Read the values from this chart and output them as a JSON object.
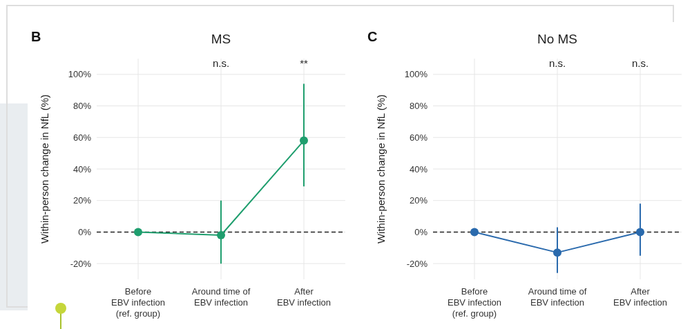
{
  "chart_data": [
    {
      "type": "line",
      "title": "MS",
      "ylabel": "Within-person change in NfL (%)",
      "categories": [
        "Before\nEBV infection\n(ref. group)",
        "Around time of\nEBV infection",
        "After\nEBV infection"
      ],
      "series": [
        {
          "color": "#1f9e6e",
          "values": [
            0,
            -2,
            58
          ],
          "errors": [
            null,
            [
              -20,
              20
            ],
            [
              29,
              94
            ]
          ]
        }
      ],
      "ylim": [
        -30,
        110
      ],
      "yticks": [
        {
          "value": -20,
          "label": "-20%"
        },
        {
          "value": 0,
          "label": "0%"
        },
        {
          "value": 20,
          "label": "20%"
        },
        {
          "value": 40,
          "label": "40%"
        },
        {
          "value": 60,
          "label": "60%"
        },
        {
          "value": 80,
          "label": "80%"
        },
        {
          "value": 100,
          "label": "100%"
        }
      ],
      "grid": true,
      "marker": "circle",
      "ref_lines": [
        {
          "axis": "y",
          "value": 0,
          "line_style": "dashed",
          "color": "#222222"
        }
      ],
      "annotations": [
        "B",
        "n.s.",
        "**"
      ]
    },
    {
      "type": "line",
      "title": "No MS",
      "ylabel": "Within-person change in NfL (%)",
      "categories": [
        "Before\nEBV infection\n(ref. group)",
        "Around time of\nEBV infection",
        "After\nEBV infection"
      ],
      "series": [
        {
          "color": "#2a6aad",
          "values": [
            0,
            -13,
            0
          ],
          "errors": [
            null,
            [
              -26,
              3
            ],
            [
              -15,
              18
            ]
          ]
        }
      ],
      "ylim": [
        -30,
        110
      ],
      "yticks": [
        {
          "value": -20,
          "label": "-20%"
        },
        {
          "value": 0,
          "label": "0%"
        },
        {
          "value": 20,
          "label": "20%"
        },
        {
          "value": 40,
          "label": "40%"
        },
        {
          "value": 60,
          "label": "60%"
        },
        {
          "value": 80,
          "label": "80%"
        },
        {
          "value": 100,
          "label": "100%"
        }
      ],
      "grid": true,
      "marker": "circle",
      "ref_lines": [
        {
          "axis": "y",
          "value": 0,
          "line_style": "dashed",
          "color": "#222222"
        }
      ],
      "annotations": [
        "C",
        "n.s.",
        "n.s."
      ]
    }
  ]
}
